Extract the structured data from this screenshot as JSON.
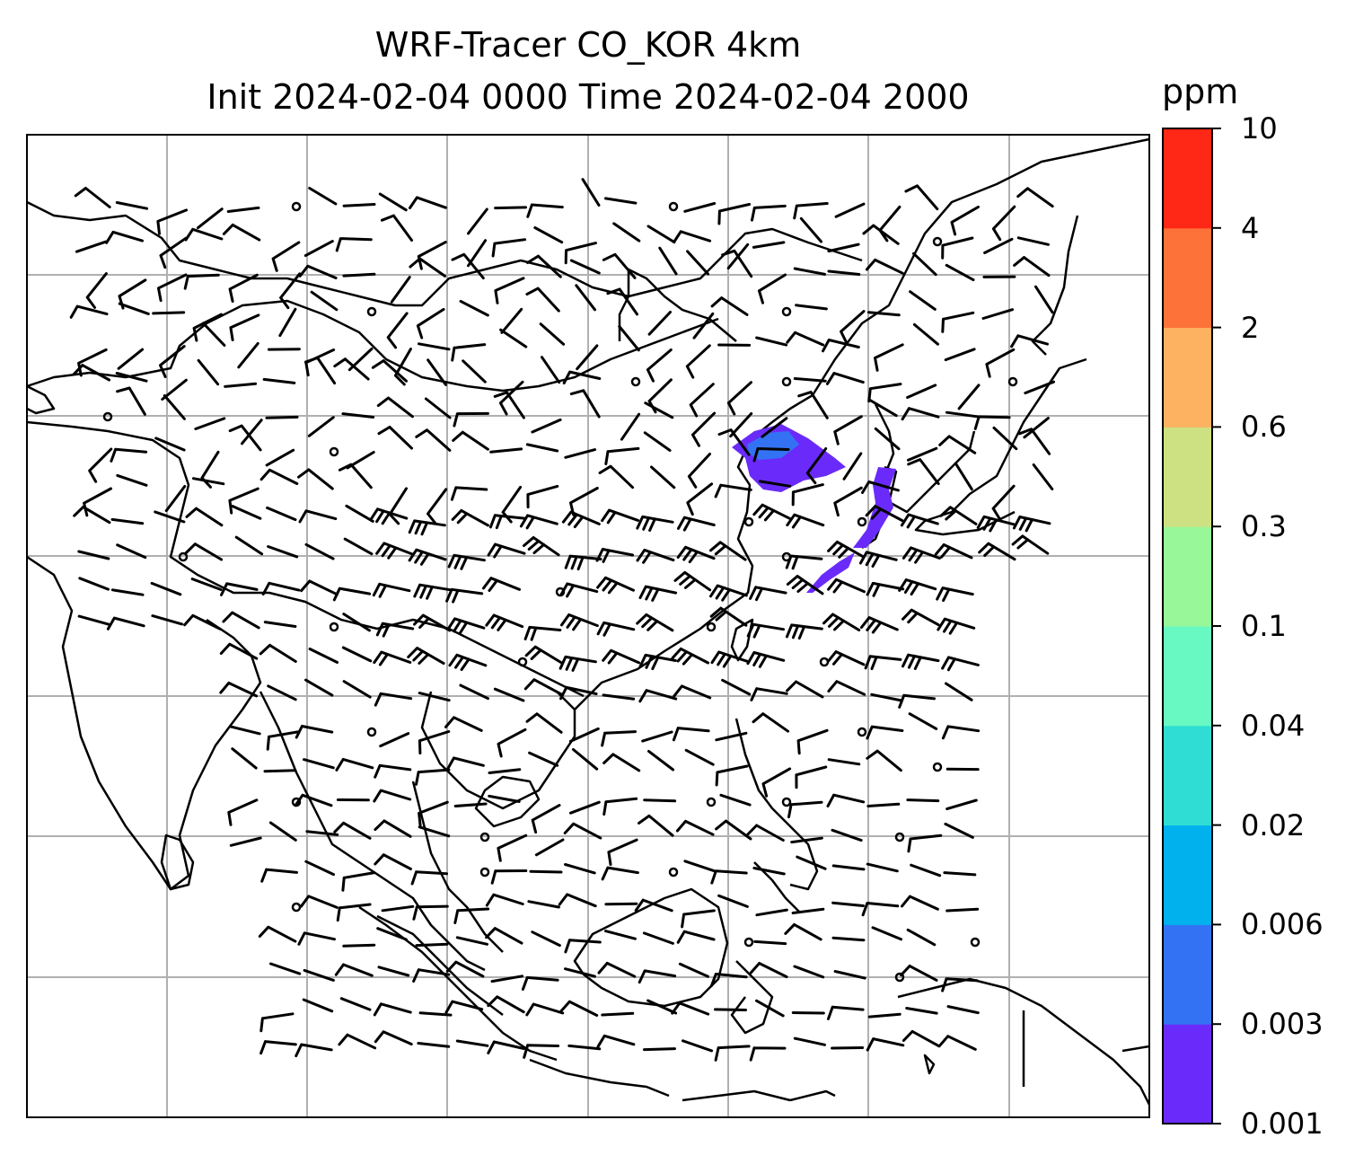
{
  "title": {
    "line1": "WRF-Tracer CO_KOR 4km",
    "line2": "Init 2024-02-04 0000 Time 2024-02-04 2000"
  },
  "colorbar": {
    "unit": "ppm",
    "levels": [
      "0.001",
      "0.003",
      "0.006",
      "0.02",
      "0.04",
      "0.1",
      "0.3",
      "0.6",
      "2",
      "4",
      "10"
    ],
    "colors": [
      "#6a2bfa",
      "#3373f3",
      "#01b1ee",
      "#30ddd4",
      "#67f9c1",
      "#98f798",
      "#cde182",
      "#fdb262",
      "#fd7239",
      "#ff2716"
    ]
  },
  "map": {
    "gridlines": true,
    "coastline_color": "#000000",
    "plume_color": "#6a2bfa",
    "plume_inner_color": "#3373f3"
  }
}
